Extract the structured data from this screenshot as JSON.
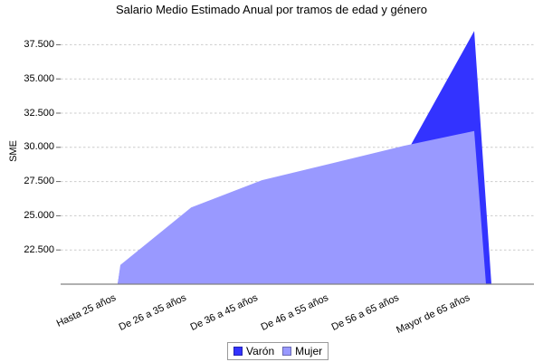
{
  "chart_data": {
    "type": "area",
    "title": "Salario Medio Estimado Anual por tramos de edad y género",
    "xlabel": "",
    "ylabel": "SME",
    "categories": [
      "Hasta 25 años",
      "De 26 a 35 años",
      "De 36 a 45 años",
      "De 46 a 55 años",
      "De 56 a 65 años",
      "Mayor de 65 años"
    ],
    "series": [
      {
        "name": "Varón",
        "color": "#3333ff",
        "values": [
          null,
          null,
          null,
          null,
          29200,
          38500
        ],
        "note": "values for the first four age groups are hidden behind the Mujer area; only the last two are visible"
      },
      {
        "name": "Mujer",
        "color": "#9999ff",
        "values": [
          21400,
          25600,
          27600,
          28850,
          30100,
          31200
        ]
      }
    ],
    "ylim": [
      20000,
      40000
    ],
    "y_ticks": [
      {
        "value": 22500,
        "label": "22.500"
      },
      {
        "value": 25000,
        "label": "25.000"
      },
      {
        "value": 27500,
        "label": "27.500"
      },
      {
        "value": 30000,
        "label": "30.000"
      },
      {
        "value": 32500,
        "label": "32.500"
      },
      {
        "value": 35000,
        "label": "35.000"
      },
      {
        "value": 37500,
        "label": "37.500"
      }
    ],
    "grid": "horizontal-dashed",
    "legend_position": "bottom"
  },
  "colors": {
    "varon": "#3333ff",
    "mujer": "#9999ff",
    "gridline": "#cccccc",
    "axis_line": "#808080",
    "tick_mark": "#666666",
    "text": "#000000",
    "background": "#ffffff"
  }
}
